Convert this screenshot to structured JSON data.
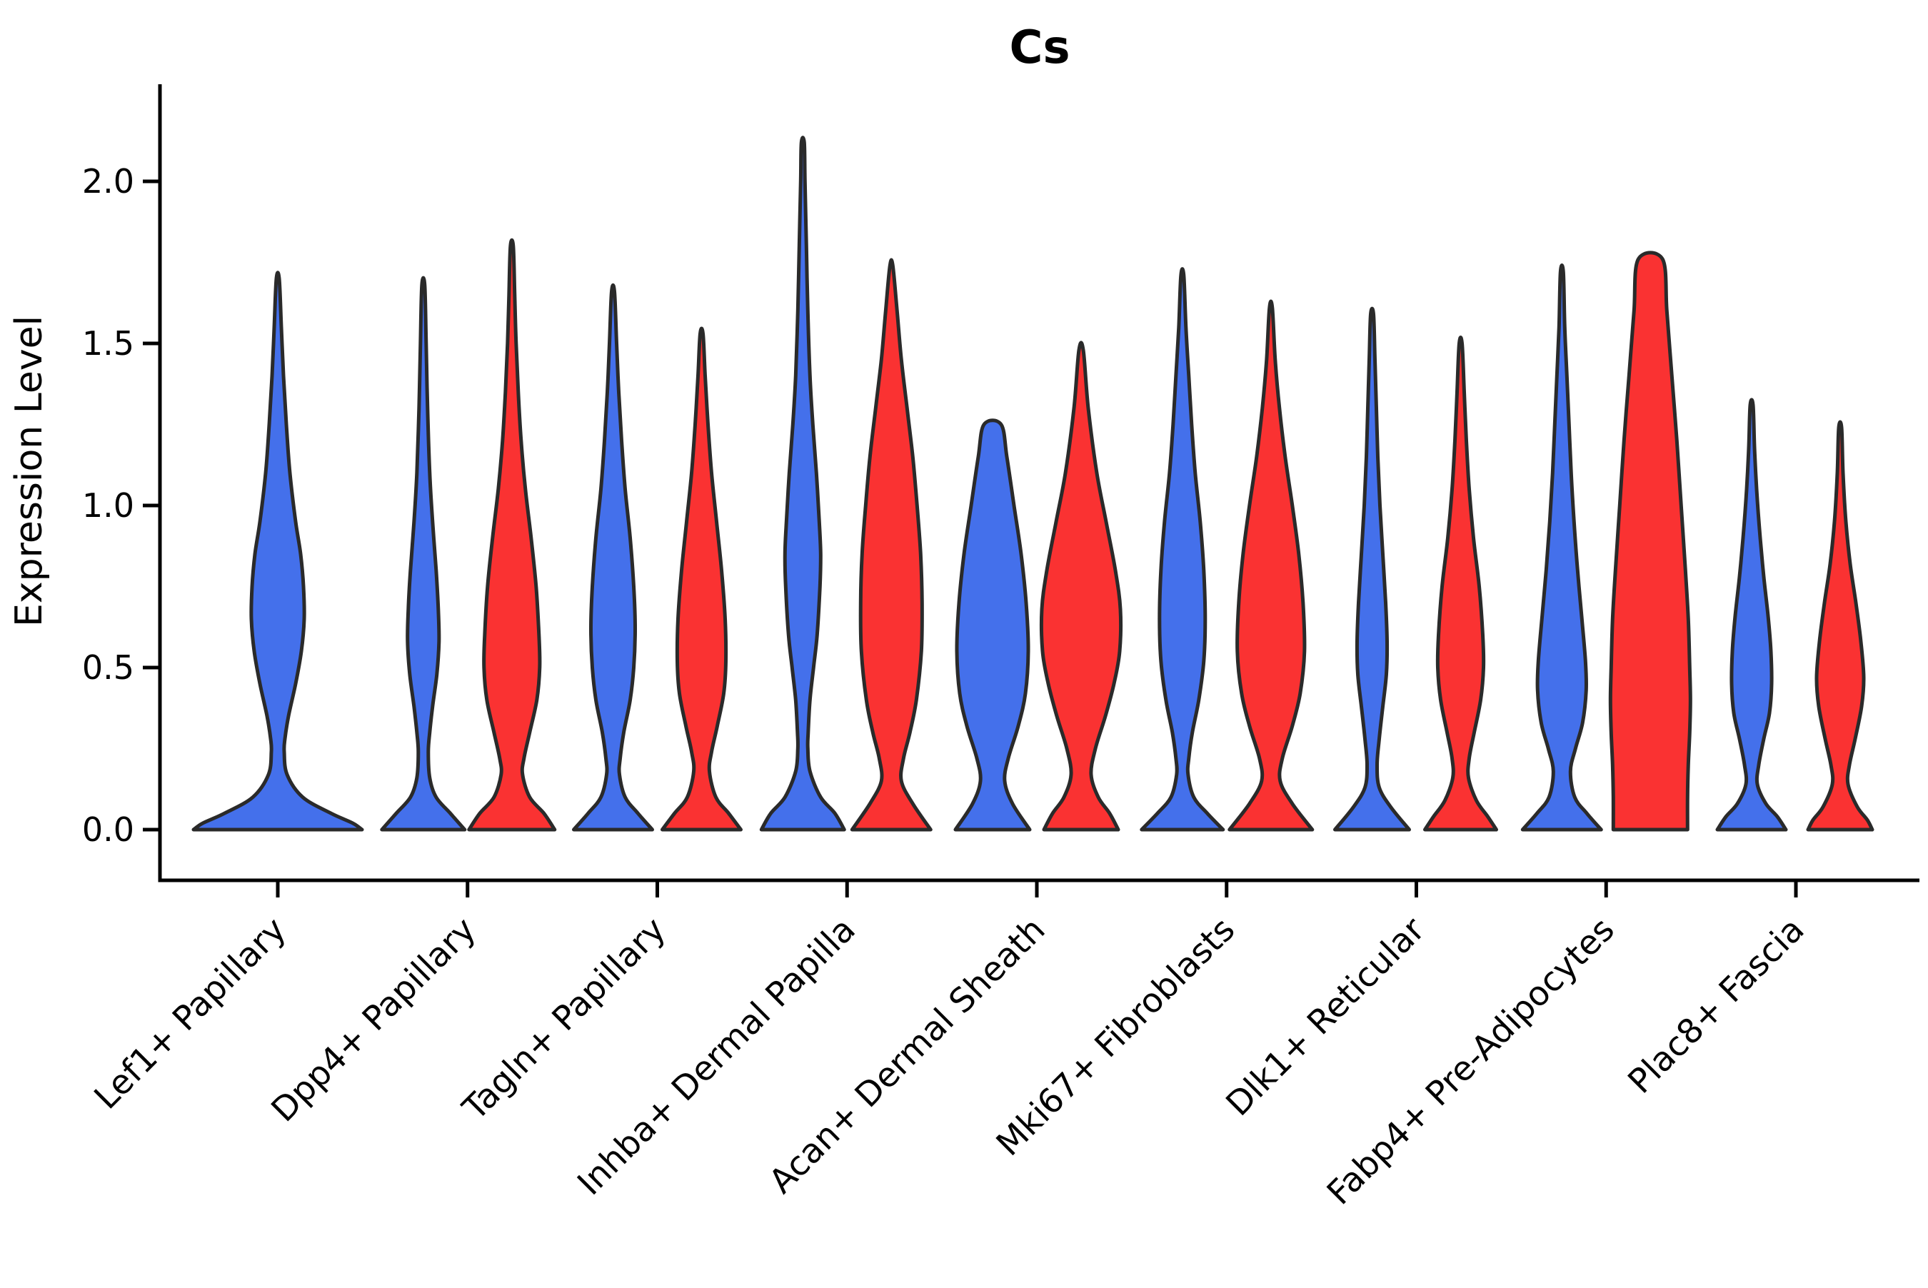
{
  "chart_data": {
    "type": "violin",
    "title": "Cs",
    "ylabel": "Expression Level",
    "xlabel": "",
    "legend": "none",
    "grid": false,
    "ylim": [
      -0.16,
      2.3
    ],
    "ytick_labels": [
      "0.0",
      "0.5",
      "1.0",
      "1.5",
      "2.0"
    ],
    "ytick_values": [
      0.0,
      0.5,
      1.0,
      1.5,
      2.0
    ],
    "categories": [
      "Lef1+ Papillary",
      "Dpp4+ Papillary",
      "Tagln+ Papillary",
      "Inhba+ Dermal Papilla",
      "Acan+ Dermal Sheath",
      "Mki67+ Fibroblasts",
      "Dlk1+ Reticular",
      "Fabp4+ Pre-Adipocytes",
      "Plac8+ Fascia"
    ],
    "colors": {
      "blue": "#4470EB",
      "red": "#FA3232",
      "outline": "#2A2A2A",
      "axis": "#000000"
    },
    "violins": [
      {
        "category": "Lef1+ Papillary",
        "group": "blue",
        "offset": 0,
        "flat_top": false,
        "max_expression": 1.7,
        "profile": [
          [
            1.7,
            2
          ],
          [
            1.55,
            5
          ],
          [
            1.4,
            8
          ],
          [
            1.25,
            12
          ],
          [
            1.1,
            17
          ],
          [
            0.95,
            25
          ],
          [
            0.85,
            32
          ],
          [
            0.75,
            36
          ],
          [
            0.65,
            37
          ],
          [
            0.55,
            33
          ],
          [
            0.45,
            25
          ],
          [
            0.35,
            15
          ],
          [
            0.28,
            10
          ],
          [
            0.24,
            9
          ],
          [
            0.17,
            13
          ],
          [
            0.1,
            35
          ],
          [
            0.05,
            75
          ],
          [
            0.02,
            105
          ],
          [
            0.0,
            118
          ]
        ]
      },
      {
        "category": "Dpp4+ Papillary",
        "group": "blue",
        "offset": -62,
        "flat_top": false,
        "max_expression": 1.68,
        "profile": [
          [
            1.68,
            2
          ],
          [
            1.5,
            4
          ],
          [
            1.3,
            6
          ],
          [
            1.1,
            9
          ],
          [
            0.95,
            13
          ],
          [
            0.8,
            18
          ],
          [
            0.68,
            21
          ],
          [
            0.58,
            22
          ],
          [
            0.48,
            19
          ],
          [
            0.38,
            13
          ],
          [
            0.3,
            9
          ],
          [
            0.24,
            7
          ],
          [
            0.16,
            9
          ],
          [
            0.1,
            18
          ],
          [
            0.05,
            38
          ],
          [
            0.0,
            58
          ]
        ]
      },
      {
        "category": "Dpp4+ Papillary",
        "group": "red",
        "offset": 62,
        "flat_top": false,
        "max_expression": 1.8,
        "profile": [
          [
            1.8,
            2
          ],
          [
            1.65,
            4
          ],
          [
            1.5,
            6
          ],
          [
            1.35,
            9
          ],
          [
            1.2,
            13
          ],
          [
            1.05,
            19
          ],
          [
            0.9,
            27
          ],
          [
            0.75,
            34
          ],
          [
            0.6,
            38
          ],
          [
            0.5,
            39
          ],
          [
            0.4,
            35
          ],
          [
            0.3,
            25
          ],
          [
            0.22,
            17
          ],
          [
            0.17,
            15
          ],
          [
            0.1,
            25
          ],
          [
            0.05,
            45
          ],
          [
            0.0,
            60
          ]
        ]
      },
      {
        "category": "Tagln+ Papillary",
        "group": "blue",
        "offset": -62,
        "flat_top": false,
        "max_expression": 1.66,
        "profile": [
          [
            1.66,
            2
          ],
          [
            1.5,
            5
          ],
          [
            1.35,
            8
          ],
          [
            1.2,
            12
          ],
          [
            1.05,
            17
          ],
          [
            0.9,
            24
          ],
          [
            0.75,
            29
          ],
          [
            0.62,
            31
          ],
          [
            0.5,
            29
          ],
          [
            0.4,
            24
          ],
          [
            0.3,
            15
          ],
          [
            0.22,
            10
          ],
          [
            0.17,
            9
          ],
          [
            0.1,
            17
          ],
          [
            0.05,
            35
          ],
          [
            0.0,
            55
          ]
        ]
      },
      {
        "category": "Tagln+ Papillary",
        "group": "red",
        "offset": 62,
        "flat_top": false,
        "max_expression": 1.53,
        "profile": [
          [
            1.53,
            2
          ],
          [
            1.4,
            5
          ],
          [
            1.25,
            9
          ],
          [
            1.1,
            14
          ],
          [
            0.95,
            21
          ],
          [
            0.8,
            28
          ],
          [
            0.65,
            33
          ],
          [
            0.52,
            34
          ],
          [
            0.42,
            31
          ],
          [
            0.32,
            22
          ],
          [
            0.24,
            14
          ],
          [
            0.18,
            11
          ],
          [
            0.1,
            20
          ],
          [
            0.05,
            38
          ],
          [
            0.0,
            55
          ]
        ]
      },
      {
        "category": "Inhba+ Dermal Papilla",
        "group": "blue",
        "offset": -62,
        "flat_top": false,
        "max_expression": 2.12,
        "profile": [
          [
            2.12,
            2
          ],
          [
            2.0,
            3
          ],
          [
            1.8,
            5
          ],
          [
            1.6,
            7
          ],
          [
            1.4,
            10
          ],
          [
            1.25,
            14
          ],
          [
            1.1,
            19
          ],
          [
            0.95,
            23
          ],
          [
            0.85,
            25
          ],
          [
            0.75,
            24
          ],
          [
            0.6,
            20
          ],
          [
            0.5,
            15
          ],
          [
            0.4,
            10
          ],
          [
            0.3,
            7.5
          ],
          [
            0.25,
            7
          ],
          [
            0.18,
            10
          ],
          [
            0.1,
            25
          ],
          [
            0.05,
            45
          ],
          [
            0.0,
            58
          ]
        ]
      },
      {
        "category": "Inhba+ Dermal Papilla",
        "group": "red",
        "offset": 62,
        "flat_top": false,
        "max_expression": 1.74,
        "profile": [
          [
            1.74,
            2
          ],
          [
            1.6,
            8
          ],
          [
            1.45,
            14
          ],
          [
            1.3,
            22
          ],
          [
            1.15,
            30
          ],
          [
            1.0,
            36
          ],
          [
            0.85,
            41
          ],
          [
            0.7,
            43
          ],
          [
            0.55,
            42
          ],
          [
            0.4,
            35
          ],
          [
            0.3,
            26
          ],
          [
            0.22,
            17
          ],
          [
            0.15,
            14
          ],
          [
            0.08,
            30
          ],
          [
            0.0,
            55
          ]
        ]
      },
      {
        "category": "Acan+ Dermal Sheath",
        "group": "blue",
        "offset": -62,
        "flat_top": true,
        "max_expression": 1.25,
        "profile": [
          [
            1.25,
            12
          ],
          [
            1.15,
            20
          ],
          [
            1.0,
            30
          ],
          [
            0.85,
            40
          ],
          [
            0.7,
            47
          ],
          [
            0.55,
            50
          ],
          [
            0.42,
            46
          ],
          [
            0.32,
            36
          ],
          [
            0.22,
            22
          ],
          [
            0.15,
            17
          ],
          [
            0.08,
            28
          ],
          [
            0.0,
            52
          ]
        ]
      },
      {
        "category": "Acan+ Dermal Sheath",
        "group": "red",
        "offset": 62,
        "flat_top": false,
        "max_expression": 1.48,
        "profile": [
          [
            1.48,
            3
          ],
          [
            1.3,
            10
          ],
          [
            1.1,
            22
          ],
          [
            0.95,
            35
          ],
          [
            0.8,
            48
          ],
          [
            0.68,
            55
          ],
          [
            0.55,
            54
          ],
          [
            0.45,
            46
          ],
          [
            0.35,
            34
          ],
          [
            0.25,
            20
          ],
          [
            0.17,
            14
          ],
          [
            0.1,
            24
          ],
          [
            0.05,
            40
          ],
          [
            0.0,
            52
          ]
        ]
      },
      {
        "category": "Mki67+ Fibroblasts",
        "group": "blue",
        "offset": -62,
        "flat_top": false,
        "max_expression": 1.71,
        "profile": [
          [
            1.71,
            2
          ],
          [
            1.55,
            5
          ],
          [
            1.4,
            9
          ],
          [
            1.25,
            13
          ],
          [
            1.1,
            18
          ],
          [
            0.95,
            25
          ],
          [
            0.8,
            30
          ],
          [
            0.65,
            32
          ],
          [
            0.52,
            30
          ],
          [
            0.4,
            23
          ],
          [
            0.3,
            14
          ],
          [
            0.22,
            9
          ],
          [
            0.17,
            8
          ],
          [
            0.1,
            16
          ],
          [
            0.05,
            35
          ],
          [
            0.0,
            57
          ]
        ]
      },
      {
        "category": "Mki67+ Fibroblasts",
        "group": "red",
        "offset": 62,
        "flat_top": false,
        "max_expression": 1.61,
        "profile": [
          [
            1.61,
            2
          ],
          [
            1.45,
            6
          ],
          [
            1.3,
            12
          ],
          [
            1.15,
            20
          ],
          [
            1.0,
            30
          ],
          [
            0.85,
            39
          ],
          [
            0.7,
            45
          ],
          [
            0.55,
            47
          ],
          [
            0.42,
            41
          ],
          [
            0.32,
            30
          ],
          [
            0.22,
            16
          ],
          [
            0.15,
            13
          ],
          [
            0.08,
            30
          ],
          [
            0.0,
            58
          ]
        ]
      },
      {
        "category": "Dlk1+ Reticular",
        "group": "blue",
        "offset": -62,
        "flat_top": false,
        "max_expression": 1.59,
        "profile": [
          [
            1.59,
            2
          ],
          [
            1.45,
            4
          ],
          [
            1.3,
            6
          ],
          [
            1.15,
            8
          ],
          [
            1.0,
            11
          ],
          [
            0.85,
            15
          ],
          [
            0.7,
            19
          ],
          [
            0.58,
            21
          ],
          [
            0.48,
            20
          ],
          [
            0.38,
            15
          ],
          [
            0.28,
            10
          ],
          [
            0.2,
            7
          ],
          [
            0.13,
            10
          ],
          [
            0.07,
            26
          ],
          [
            0.0,
            52
          ]
        ]
      },
      {
        "category": "Dlk1+ Reticular",
        "group": "red",
        "offset": 62,
        "flat_top": false,
        "max_expression": 1.5,
        "profile": [
          [
            1.5,
            2
          ],
          [
            1.35,
            5
          ],
          [
            1.2,
            8
          ],
          [
            1.05,
            12
          ],
          [
            0.9,
            18
          ],
          [
            0.75,
            26
          ],
          [
            0.6,
            31
          ],
          [
            0.5,
            32
          ],
          [
            0.4,
            28
          ],
          [
            0.3,
            19
          ],
          [
            0.22,
            12
          ],
          [
            0.16,
            11
          ],
          [
            0.09,
            22
          ],
          [
            0.04,
            38
          ],
          [
            0.0,
            50
          ]
        ]
      },
      {
        "category": "Fabp4+ Pre-Adipocytes",
        "group": "blue",
        "offset": -62,
        "flat_top": false,
        "max_expression": 1.72,
        "profile": [
          [
            1.72,
            2
          ],
          [
            1.55,
            4
          ],
          [
            1.4,
            7
          ],
          [
            1.25,
            10
          ],
          [
            1.1,
            13
          ],
          [
            0.95,
            17
          ],
          [
            0.8,
            22
          ],
          [
            0.65,
            28
          ],
          [
            0.52,
            33
          ],
          [
            0.43,
            34
          ],
          [
            0.33,
            29
          ],
          [
            0.25,
            19
          ],
          [
            0.18,
            12
          ],
          [
            0.1,
            18
          ],
          [
            0.05,
            35
          ],
          [
            0.0,
            55
          ]
        ]
      },
      {
        "category": "Fabp4+ Pre-Adipocytes",
        "group": "red",
        "offset": 62,
        "flat_top": true,
        "max_expression": 1.76,
        "profile": [
          [
            1.76,
            17
          ],
          [
            1.6,
            23
          ],
          [
            1.4,
            30
          ],
          [
            1.2,
            37
          ],
          [
            1.0,
            43
          ],
          [
            0.8,
            49
          ],
          [
            0.65,
            53
          ],
          [
            0.5,
            55
          ],
          [
            0.4,
            56
          ],
          [
            0.3,
            55
          ],
          [
            0.2,
            53
          ],
          [
            0.1,
            52
          ],
          [
            0.0,
            52
          ]
        ]
      },
      {
        "category": "Plac8+ Fascia",
        "group": "blue",
        "offset": -62,
        "flat_top": false,
        "max_expression": 1.31,
        "profile": [
          [
            1.31,
            2
          ],
          [
            1.18,
            4
          ],
          [
            1.05,
            7
          ],
          [
            0.9,
            12
          ],
          [
            0.78,
            17
          ],
          [
            0.66,
            23
          ],
          [
            0.55,
            27
          ],
          [
            0.45,
            28
          ],
          [
            0.36,
            25
          ],
          [
            0.28,
            17
          ],
          [
            0.2,
            10
          ],
          [
            0.14,
            8
          ],
          [
            0.08,
            20
          ],
          [
            0.04,
            36
          ],
          [
            0.0,
            48
          ]
        ]
      },
      {
        "category": "Plac8+ Fascia",
        "group": "red",
        "offset": 62,
        "flat_top": false,
        "max_expression": 1.24,
        "profile": [
          [
            1.24,
            2
          ],
          [
            1.1,
            4
          ],
          [
            0.95,
            8
          ],
          [
            0.82,
            14
          ],
          [
            0.7,
            22
          ],
          [
            0.58,
            29
          ],
          [
            0.47,
            33
          ],
          [
            0.38,
            30
          ],
          [
            0.28,
            21
          ],
          [
            0.2,
            13
          ],
          [
            0.14,
            11
          ],
          [
            0.07,
            24
          ],
          [
            0.03,
            38
          ],
          [
            0.0,
            45
          ]
        ]
      }
    ]
  }
}
